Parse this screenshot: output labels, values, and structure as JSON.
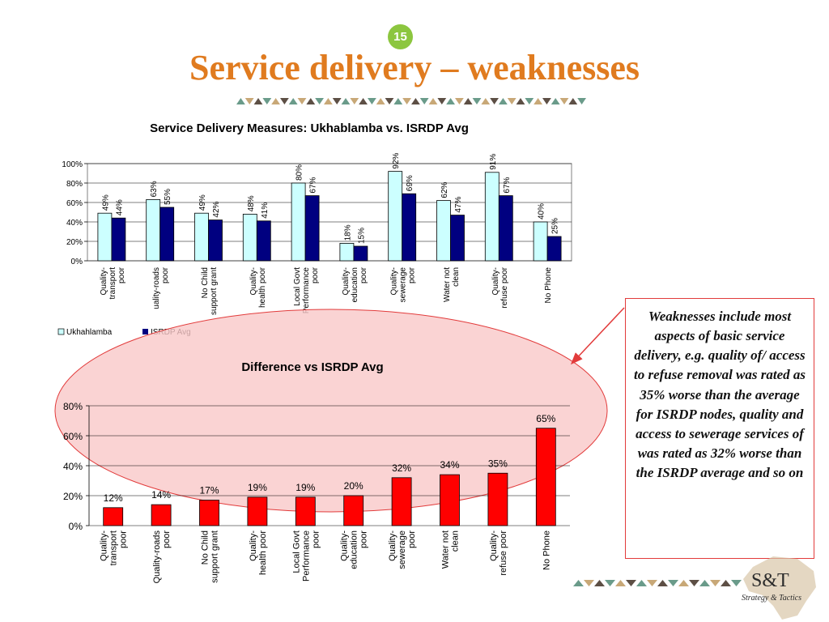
{
  "slide": {
    "number": "15",
    "title": "Service delivery – weaknesses",
    "callout": "Weaknesses include most aspects of basic service delivery, e.g. quality of/ access to refuse removal was rated as 35% worse than the average for ISRDP nodes, quality and access to sewerage services of was rated as 32% worse than the ISRDP average and so on",
    "logo": {
      "main": "S&T",
      "sub": "Strategy & Tactics"
    },
    "colors": {
      "title": "#e07b1f",
      "badge": "#8cc63f",
      "ellipse_fill": "#f9c8c8",
      "ellipse_stroke": "#e23b3b"
    }
  },
  "chart_data": [
    {
      "type": "bar",
      "title": "Service Delivery Measures: Ukhablamba vs. ISRDP Avg",
      "categories": [
        [
          "Quality-",
          "transport",
          "poor"
        ],
        [
          "uality-roads",
          "poor"
        ],
        [
          "No Child",
          "support grant"
        ],
        [
          "Quality-",
          "health poor"
        ],
        [
          "Local Govt",
          "Performance",
          "poor"
        ],
        [
          "Quality-",
          "education",
          "poor"
        ],
        [
          "Quality-",
          "sewerage",
          "poor"
        ],
        [
          "Water not",
          "clean"
        ],
        [
          "Quality-",
          "refuse poor"
        ],
        [
          "No Phone"
        ]
      ],
      "series": [
        {
          "name": "Ukhahlamba",
          "color": "#ccffff",
          "values": [
            49,
            63,
            49,
            48,
            80,
            18,
            92,
            62,
            91,
            40
          ]
        },
        {
          "name": "ISRDP Avg",
          "color": "#000080",
          "values": [
            44,
            55,
            42,
            41,
            67,
            15,
            69,
            47,
            67,
            25
          ]
        }
      ],
      "ylim": [
        0,
        100
      ],
      "yticks": [
        "0%",
        "20%",
        "40%",
        "60%",
        "80%",
        "100%"
      ],
      "legend": "bottom-left"
    },
    {
      "type": "bar",
      "title": "Difference vs ISRDP Avg",
      "categories": [
        [
          "Quality-",
          "transport",
          "poor"
        ],
        [
          "Quality-roads",
          "poor"
        ],
        [
          "No Child",
          "support grant"
        ],
        [
          "Quality-",
          "health poor"
        ],
        [
          "Local Govt",
          "Performance",
          "poor"
        ],
        [
          "Quality-",
          "education",
          "poor"
        ],
        [
          "Quality-",
          "sewerage",
          "poor"
        ],
        [
          "Water not",
          "clean"
        ],
        [
          "Quality-",
          "refuse poor"
        ],
        [
          "No Phone"
        ]
      ],
      "series": [
        {
          "name": "",
          "color": "#ff0000",
          "values": [
            12,
            14,
            17,
            19,
            19,
            20,
            32,
            34,
            35,
            65
          ]
        }
      ],
      "ylim": [
        0,
        80
      ],
      "yticks": [
        "0%",
        "20%",
        "40%",
        "60%",
        "80%"
      ]
    }
  ]
}
